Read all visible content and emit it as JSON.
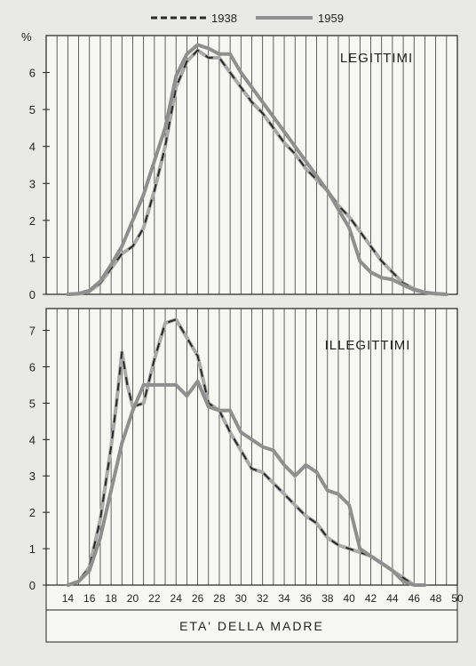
{
  "colors": {
    "page_bg": "#e9e9e6",
    "plot_bg": "#f7f7f4",
    "grid": "#3a3a3a",
    "frame": "#222222",
    "series_1938": "#a9a9a9",
    "series_1938_dash": "#2a2a2a",
    "series_1959": "#8f8f8f"
  },
  "chart_data": {
    "type": "line",
    "y_unit_label": "%",
    "xlabel": "ETA' DELLA MADRE",
    "xlim": [
      12,
      50
    ],
    "x_ticks": [
      14,
      16,
      18,
      20,
      22,
      24,
      26,
      28,
      30,
      32,
      34,
      36,
      38,
      40,
      42,
      44,
      46,
      48,
      50
    ],
    "legend": {
      "position": "top-center",
      "entries": [
        {
          "label": "1938",
          "style": "dashed"
        },
        {
          "label": "1959",
          "style": "solid"
        }
      ]
    },
    "grid": "vertical lines at each year",
    "panels": [
      {
        "title": "LEGITTIMI",
        "ylim": [
          0,
          7
        ],
        "y_ticks": [
          0,
          1,
          2,
          3,
          4,
          5,
          6
        ],
        "series": [
          {
            "name": "1938",
            "style": "dashed",
            "x": [
              14,
              15,
              16,
              17,
              18,
              19,
              20,
              21,
              22,
              23,
              24,
              25,
              26,
              27,
              28,
              29,
              30,
              31,
              32,
              33,
              34,
              35,
              36,
              37,
              38,
              39,
              40,
              41,
              42,
              43,
              44,
              45,
              46,
              47,
              48,
              49
            ],
            "values": [
              0,
              0.02,
              0.08,
              0.3,
              0.7,
              1.1,
              1.3,
              1.8,
              2.8,
              4.0,
              5.6,
              6.3,
              6.6,
              6.4,
              6.4,
              6.0,
              5.6,
              5.2,
              4.9,
              4.5,
              4.1,
              3.8,
              3.4,
              3.1,
              2.8,
              2.4,
              2.1,
              1.7,
              1.3,
              0.9,
              0.6,
              0.3,
              0.15,
              0.05,
              0.02,
              0
            ]
          },
          {
            "name": "1959",
            "style": "solid",
            "x": [
              14,
              15,
              16,
              17,
              18,
              19,
              20,
              21,
              22,
              23,
              24,
              25,
              26,
              27,
              28,
              29,
              30,
              31,
              32,
              33,
              34,
              35,
              36,
              37,
              38,
              39,
              40,
              41,
              42,
              43,
              44,
              45,
              46,
              47,
              48,
              49
            ],
            "values": [
              0,
              0.02,
              0.1,
              0.35,
              0.8,
              1.3,
              2.0,
              2.7,
              3.6,
              4.5,
              5.9,
              6.5,
              6.75,
              6.65,
              6.5,
              6.5,
              6.0,
              5.6,
              5.2,
              4.8,
              4.4,
              4.0,
              3.6,
              3.2,
              2.8,
              2.3,
              1.8,
              0.9,
              0.6,
              0.45,
              0.4,
              0.25,
              0.12,
              0.05,
              0.02,
              0
            ]
          }
        ]
      },
      {
        "title": "ILLEGITTIMI",
        "ylim": [
          0,
          7.6
        ],
        "y_ticks": [
          0,
          1,
          2,
          3,
          4,
          5,
          6,
          7
        ],
        "series": [
          {
            "name": "1938",
            "style": "dashed",
            "x": [
              14,
              15,
              16,
              17,
              18,
              18.5,
              19,
              19.5,
              20,
              21,
              22,
              23,
              24,
              25,
              26,
              27,
              28,
              29,
              30,
              31,
              32,
              33,
              34,
              35,
              36,
              37,
              38,
              39,
              40,
              41,
              42,
              43,
              44,
              45,
              46
            ],
            "values": [
              0,
              0.1,
              0.5,
              1.8,
              3.8,
              5.0,
              6.4,
              5.5,
              4.9,
              5.0,
              6.2,
              7.2,
              7.3,
              6.8,
              6.3,
              5.0,
              4.8,
              4.2,
              3.7,
              3.2,
              3.1,
              2.8,
              2.5,
              2.2,
              1.9,
              1.7,
              1.3,
              1.1,
              1.0,
              0.9,
              0.8,
              0.6,
              0.4,
              0.2,
              0
            ]
          },
          {
            "name": "1959",
            "style": "solid",
            "x": [
              14,
              15,
              16,
              17,
              18,
              19,
              20,
              21,
              22,
              23,
              24,
              25,
              26,
              27,
              28,
              29,
              30,
              31,
              32,
              33,
              34,
              35,
              36,
              37,
              38,
              39,
              40,
              41,
              42,
              43,
              44,
              45,
              46,
              47
            ],
            "values": [
              0,
              0.1,
              0.4,
              1.3,
              2.6,
              3.9,
              4.8,
              5.5,
              5.5,
              5.5,
              5.5,
              5.2,
              5.6,
              4.9,
              4.8,
              4.8,
              4.2,
              4.0,
              3.8,
              3.7,
              3.3,
              3.0,
              3.3,
              3.1,
              2.6,
              2.5,
              2.2,
              1.0,
              0.8,
              0.6,
              0.4,
              0.1,
              0.0,
              0
            ]
          }
        ]
      }
    ]
  }
}
